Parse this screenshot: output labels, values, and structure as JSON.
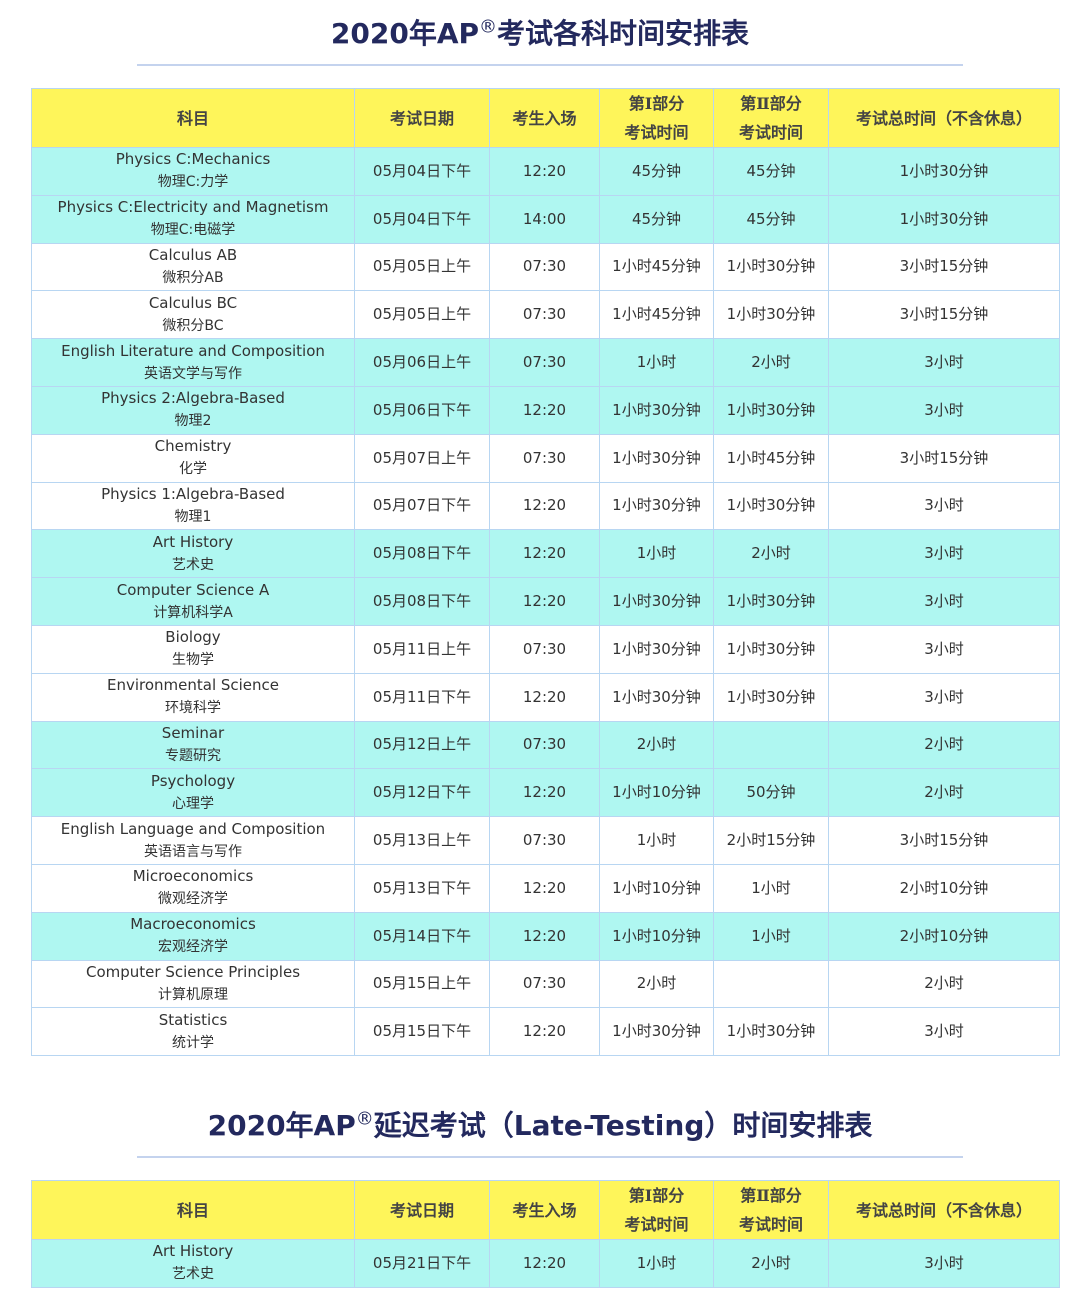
{
  "title1": {
    "pre": "2020年AP",
    "reg": "®",
    "post": "考试各科时间安排表"
  },
  "title2": {
    "pre": "2020年AP",
    "reg": "®",
    "post": "延迟考试（Late-Testing）时间安排表"
  },
  "headers": {
    "subject": "科目",
    "date": "考试日期",
    "entry": "考生入场",
    "part1_a": "第Ⅰ部分",
    "part1_b": "考试时间",
    "part2_a": "第Ⅱ部分",
    "part2_b": "考试时间",
    "total": "考试总时间（不含休息）"
  },
  "colors": {
    "header": "#fef55a",
    "highlight_row": "#aff7f1",
    "title": "#23295e"
  },
  "rows": [
    {
      "en": "Physics C:Mechanics",
      "zh": "物理C:力学",
      "date": "05月04日下午",
      "entry": "12:20",
      "p1": "45分钟",
      "p2": "45分钟",
      "total": "1小时30分钟",
      "hl": true
    },
    {
      "en": "Physics C:Electricity and Magnetism",
      "zh": "物理C:电磁学",
      "date": "05月04日下午",
      "entry": "14:00",
      "p1": "45分钟",
      "p2": "45分钟",
      "total": "1小时30分钟",
      "hl": true
    },
    {
      "en": "Calculus AB",
      "zh": "微积分AB",
      "date": "05月05日上午",
      "entry": "07:30",
      "p1": "1小时45分钟",
      "p2": "1小时30分钟",
      "total": "3小时15分钟",
      "hl": false
    },
    {
      "en": "Calculus BC",
      "zh": "微积分BC",
      "date": "05月05日上午",
      "entry": "07:30",
      "p1": "1小时45分钟",
      "p2": "1小时30分钟",
      "total": "3小时15分钟",
      "hl": false
    },
    {
      "en": "English Literature and Composition",
      "zh": "英语文学与写作",
      "date": "05月06日上午",
      "entry": "07:30",
      "p1": "1小时",
      "p2": "2小时",
      "total": "3小时",
      "hl": true
    },
    {
      "en": "Physics 2:Algebra-Based",
      "zh": "物理2",
      "date": "05月06日下午",
      "entry": "12:20",
      "p1": "1小时30分钟",
      "p2": "1小时30分钟",
      "total": "3小时",
      "hl": true
    },
    {
      "en": "Chemistry",
      "zh": "化学",
      "date": "05月07日上午",
      "entry": "07:30",
      "p1": "1小时30分钟",
      "p2": "1小时45分钟",
      "total": "3小时15分钟",
      "hl": false
    },
    {
      "en": "Physics 1:Algebra-Based",
      "zh": "物理1",
      "date": "05月07日下午",
      "entry": "12:20",
      "p1": "1小时30分钟",
      "p2": "1小时30分钟",
      "total": "3小时",
      "hl": false
    },
    {
      "en": "Art History",
      "zh": "艺术史",
      "date": "05月08日下午",
      "entry": "12:20",
      "p1": "1小时",
      "p2": "2小时",
      "total": "3小时",
      "hl": true
    },
    {
      "en": "Computer Science A",
      "zh": "计算机科学A",
      "date": "05月08日下午",
      "entry": "12:20",
      "p1": "1小时30分钟",
      "p2": "1小时30分钟",
      "total": "3小时",
      "hl": true
    },
    {
      "en": "Biology",
      "zh": "生物学",
      "date": "05月11日上午",
      "entry": "07:30",
      "p1": "1小时30分钟",
      "p2": "1小时30分钟",
      "total": "3小时",
      "hl": false
    },
    {
      "en": "Environmental Science",
      "zh": "环境科学",
      "date": "05月11日下午",
      "entry": "12:20",
      "p1": "1小时30分钟",
      "p2": "1小时30分钟",
      "total": "3小时",
      "hl": false
    },
    {
      "en": "Seminar",
      "zh": "专题研究",
      "date": "05月12日上午",
      "entry": "07:30",
      "p1": "2小时",
      "p2": "",
      "total": "2小时",
      "hl": true
    },
    {
      "en": "Psychology",
      "zh": "心理学",
      "date": "05月12日下午",
      "entry": "12:20",
      "p1": "1小时10分钟",
      "p2": "50分钟",
      "total": "2小时",
      "hl": true
    },
    {
      "en": "English Language and Composition",
      "zh": "英语语言与写作",
      "date": "05月13日上午",
      "entry": "07:30",
      "p1": "1小时",
      "p2": "2小时15分钟",
      "total": "3小时15分钟",
      "hl": false
    },
    {
      "en": "Microeconomics",
      "zh": "微观经济学",
      "date": "05月13日下午",
      "entry": "12:20",
      "p1": "1小时10分钟",
      "p2": "1小时",
      "total": "2小时10分钟",
      "hl": false
    },
    {
      "en": "Macroeconomics",
      "zh": "宏观经济学",
      "date": "05月14日下午",
      "entry": "12:20",
      "p1": "1小时10分钟",
      "p2": "1小时",
      "total": "2小时10分钟",
      "hl": true
    },
    {
      "en": "Computer Science Principles",
      "zh": "计算机原理",
      "date": "05月15日上午",
      "entry": "07:30",
      "p1": "2小时",
      "p2": "",
      "total": "2小时",
      "hl": false
    },
    {
      "en": "Statistics",
      "zh": "统计学",
      "date": "05月15日下午",
      "entry": "12:20",
      "p1": "1小时30分钟",
      "p2": "1小时30分钟",
      "total": "3小时",
      "hl": false
    }
  ],
  "late_rows": [
    {
      "en": "Art History",
      "zh": "艺术史",
      "date": "05月21日下午",
      "entry": "12:20",
      "p1": "1小时",
      "p2": "2小时",
      "total": "3小时",
      "hl": true
    }
  ]
}
